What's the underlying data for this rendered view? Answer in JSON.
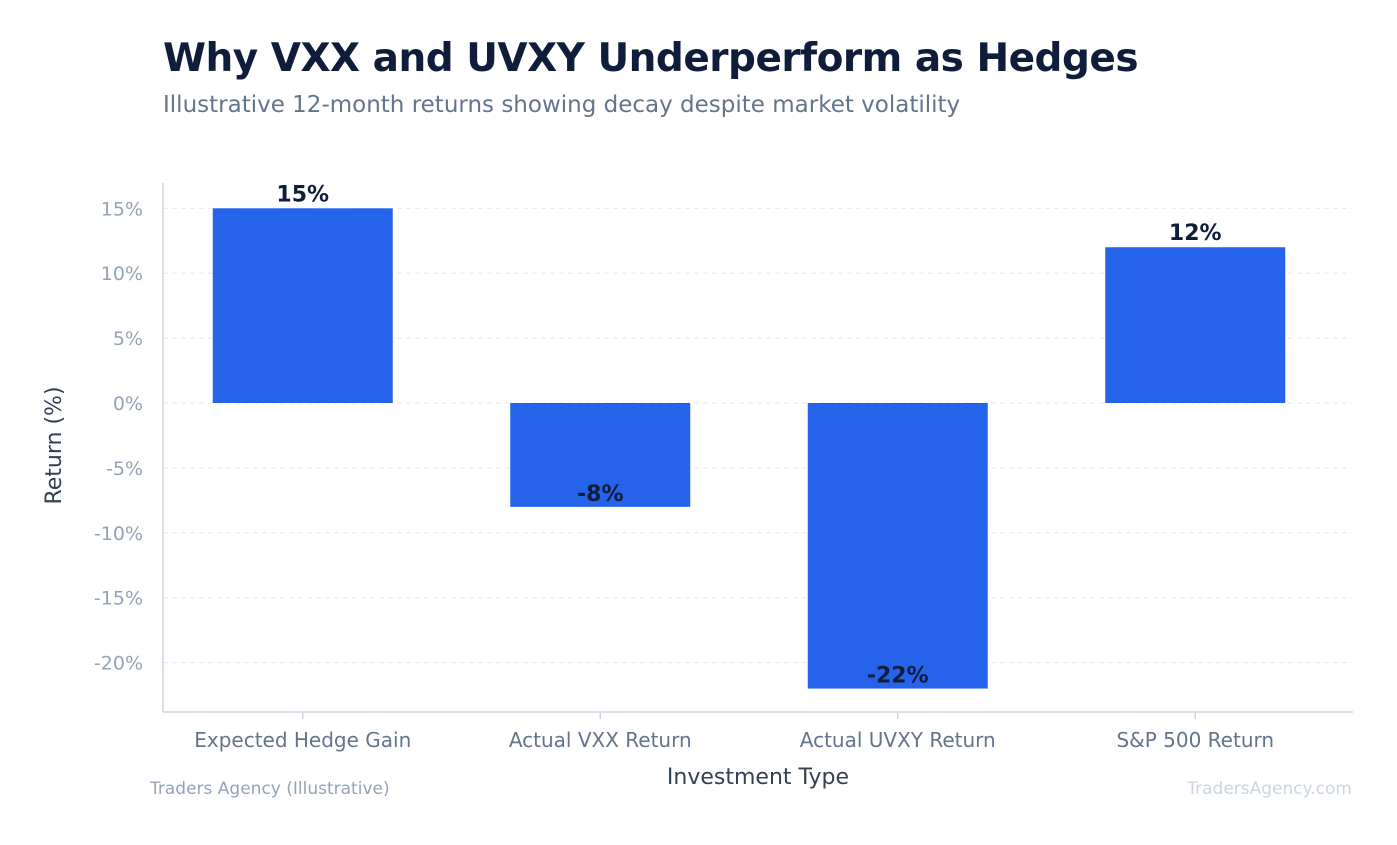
{
  "header": {
    "title": "Why VXX and UVXY Underperform as Hedges",
    "subtitle": "Illustrative 12-month returns showing decay despite market volatility"
  },
  "footer": {
    "source": "Traders Agency (Illustrative)",
    "watermark": "TradersAgency.com"
  },
  "chart_data": {
    "type": "bar",
    "title": "Why VXX and UVXY Underperform as Hedges",
    "subtitle": "Illustrative 12-month returns showing decay despite market volatility",
    "xlabel": "Investment Type",
    "ylabel": "Return (%)",
    "categories": [
      "Expected Hedge Gain",
      "Actual VXX Return",
      "Actual UVXY Return",
      "S&P 500 Return"
    ],
    "values": [
      15,
      -8,
      -22,
      12
    ],
    "data_labels": [
      "15%",
      "-8%",
      "-22%",
      "12%"
    ],
    "ylim": [
      -24,
      17
    ],
    "yticks": [
      15,
      10,
      5,
      0,
      -5,
      -10,
      -15,
      -20
    ],
    "ytick_labels": [
      "15%",
      "10%",
      "5%",
      "0%",
      "-5%",
      "-10%",
      "-15%",
      "-20%"
    ],
    "grid": true,
    "legend": "none",
    "colors": {
      "bar": "#2563eb",
      "title": "#0f1d3b",
      "axis": "#cbd5e1",
      "grid": "#e2e8f0",
      "tick_text": "#94a3b8",
      "category_text": "#64748b",
      "axis_label": "#334155"
    }
  }
}
